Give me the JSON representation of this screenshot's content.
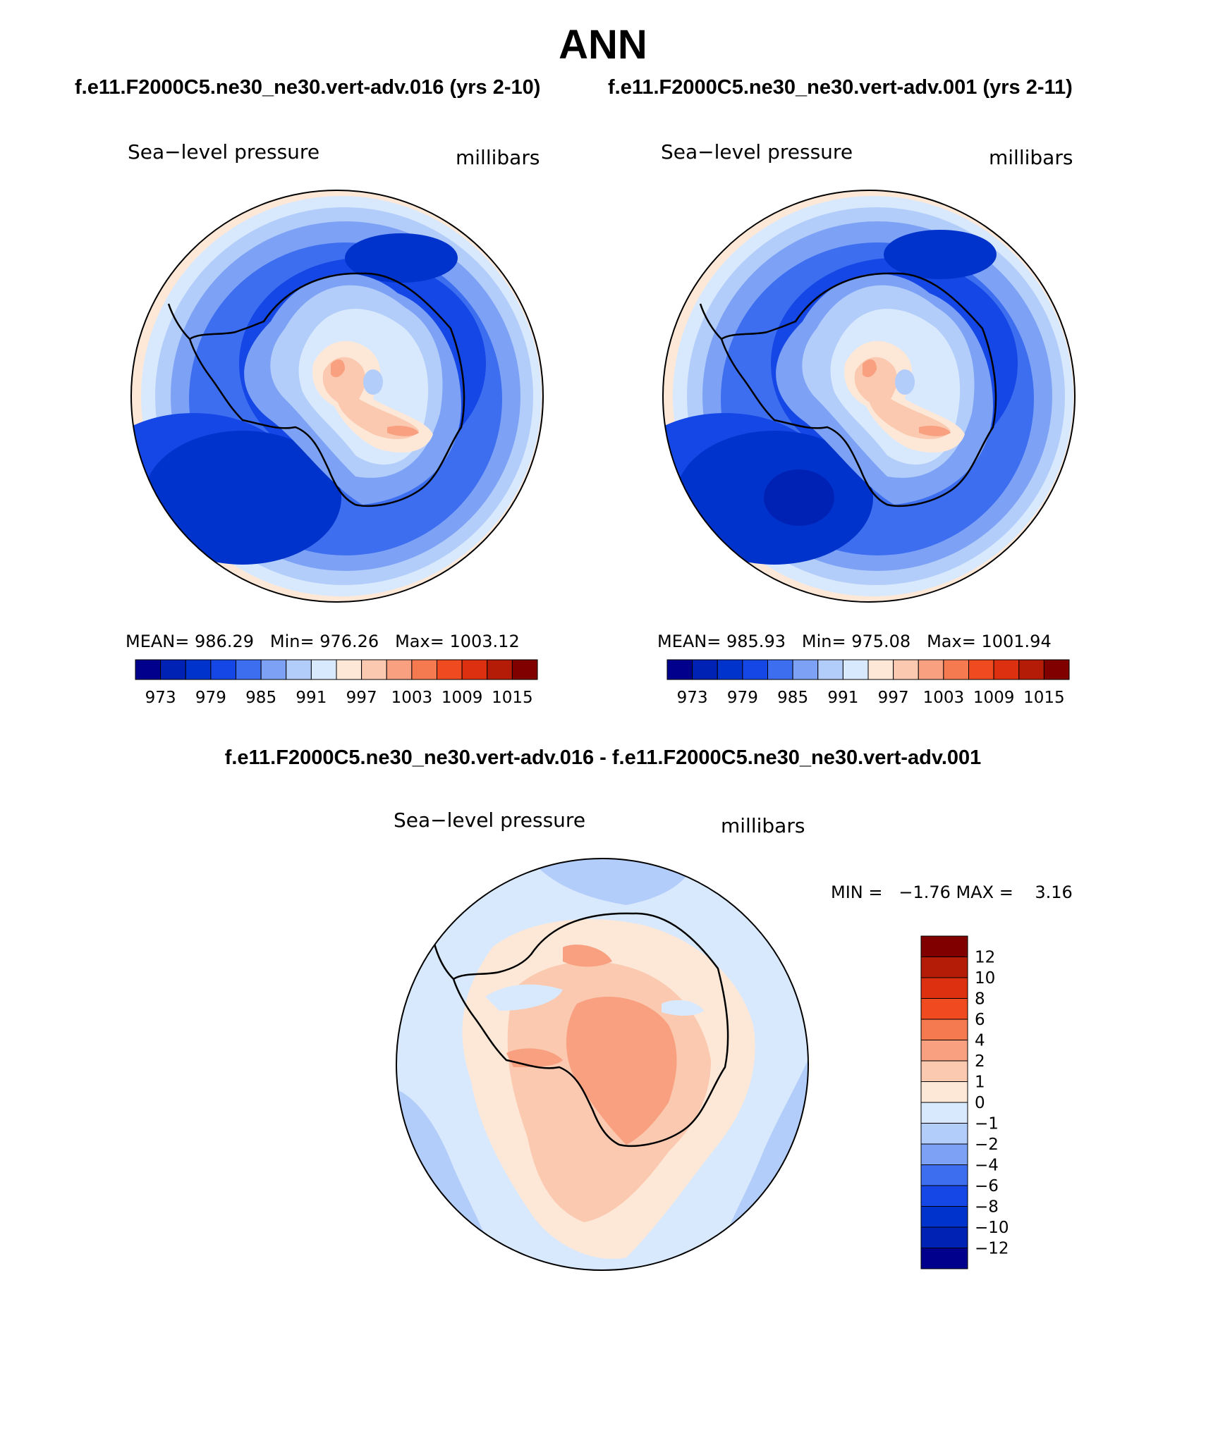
{
  "title": "ANN",
  "panels": [
    {
      "case": "f.e11.F2000C5.ne30_ne30.vert-adv.016 (yrs 2-10)",
      "variable": "Sea−level pressure",
      "units": "millibars",
      "stats": {
        "mean_label": "MEAN=",
        "mean": "986.29",
        "min_label": "Min=",
        "min": "976.26",
        "max_label": "Max=",
        "max": "1003.12"
      }
    },
    {
      "case": "f.e11.F2000C5.ne30_ne30.vert-adv.001 (yrs 2-11)",
      "variable": "Sea−level pressure",
      "units": "millibars",
      "stats": {
        "mean_label": "MEAN=",
        "mean": "985.93",
        "min_label": "Min=",
        "min": "975.08",
        "max_label": "Max=",
        "max": "1001.94"
      }
    }
  ],
  "difference": {
    "title": "f.e11.F2000C5.ne30_ne30.vert-adv.016 - f.e11.F2000C5.ne30_ne30.vert-adv.001",
    "variable": "Sea−level pressure",
    "units": "millibars",
    "min_max": "MIN =   −1.76 MAX =    3.16"
  },
  "colors": {
    "abs_scale": [
      "#00008c",
      "#0022b4",
      "#0033cc",
      "#1547e6",
      "#3d6ef0",
      "#7da2f5",
      "#b3cdfa",
      "#d8e9fd",
      "#fde8d8",
      "#fbc9b0",
      "#f8a080",
      "#f67a50",
      "#f04a20",
      "#dc3010",
      "#b41c08",
      "#800000"
    ],
    "diff_scale": [
      "#00008c",
      "#0022b4",
      "#0033cc",
      "#1547e6",
      "#3d6ef0",
      "#7da2f5",
      "#b3cdfa",
      "#d8e9fd",
      "#fde8d8",
      "#fbc9b0",
      "#f8a080",
      "#f67a50",
      "#f04a20",
      "#dc3010",
      "#b41c08",
      "#800000"
    ]
  },
  "chart_data": [
    {
      "type": "heatmap",
      "projection": "south-polar-stereographic",
      "title": "Sea−level pressure",
      "units": "millibars",
      "colorbar": {
        "orientation": "horizontal",
        "bins": 16,
        "tick_labels": [
          "973",
          "979",
          "985",
          "991",
          "997",
          "1003",
          "1009",
          "1015"
        ]
      },
      "summary": {
        "mean": 986.29,
        "min": 976.26,
        "max": 1003.12
      }
    },
    {
      "type": "heatmap",
      "projection": "south-polar-stereographic",
      "title": "Sea−level pressure",
      "units": "millibars",
      "colorbar": {
        "orientation": "horizontal",
        "bins": 16,
        "tick_labels": [
          "973",
          "979",
          "985",
          "991",
          "997",
          "1003",
          "1009",
          "1015"
        ]
      },
      "summary": {
        "mean": 985.93,
        "min": 975.08,
        "max": 1001.94
      }
    },
    {
      "type": "heatmap",
      "projection": "south-polar-stereographic",
      "title": "Sea−level pressure",
      "units": "millibars",
      "colorbar": {
        "orientation": "vertical",
        "bins": 16,
        "tick_labels": [
          "12",
          "10",
          "8",
          "6",
          "4",
          "2",
          "1",
          "0",
          "−1",
          "−2",
          "−4",
          "−6",
          "−8",
          "−10",
          "−12"
        ]
      },
      "summary": {
        "min": -1.76,
        "max": 3.16
      }
    }
  ]
}
